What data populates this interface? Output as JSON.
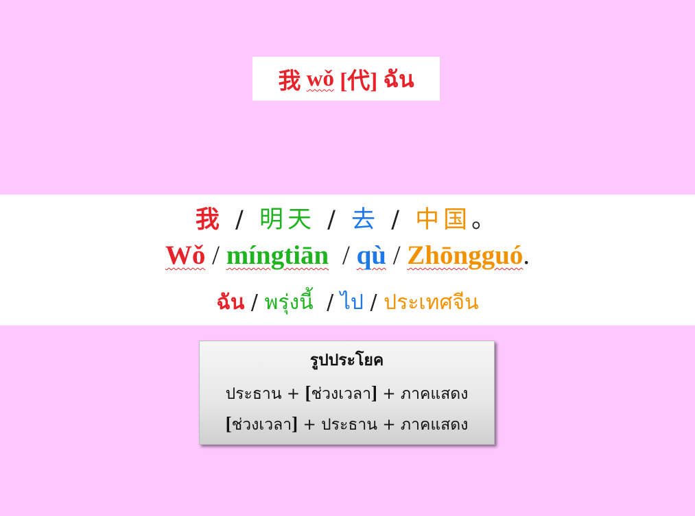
{
  "title": {
    "hanzi": "我",
    "pinyin": "wǒ",
    "pos": "[代]",
    "thai": "ฉัน"
  },
  "sentence": {
    "hanzi": [
      "我",
      "明天",
      "去",
      "中国"
    ],
    "hanzi_end": "。",
    "pinyin": [
      "Wǒ",
      "míngtiān",
      "qù",
      "Zhōngguó"
    ],
    "pinyin_end": ".",
    "thai": [
      "ฉัน",
      "พรุ่งนี้",
      "ไป",
      "ประเทศจีน"
    ],
    "separator": "/"
  },
  "pattern": {
    "heading": "รูปประโยค",
    "row1": {
      "part1": "ประธาน +",
      "bracket_open": "[",
      "time": "ช่วงเวลา",
      "bracket_close": "]",
      "part2": "+ ภาคแสดง"
    },
    "row2": {
      "bracket_open": "[",
      "time": "ช่วงเวลา",
      "bracket_close": "]",
      "part2": "+ ประธาน + ภาคแสดง"
    }
  },
  "colors": {
    "background": "#FDC8FD",
    "subject": "#E8222A",
    "time": "#1FB31F",
    "verb": "#1F78E8",
    "object": "#F39200"
  }
}
